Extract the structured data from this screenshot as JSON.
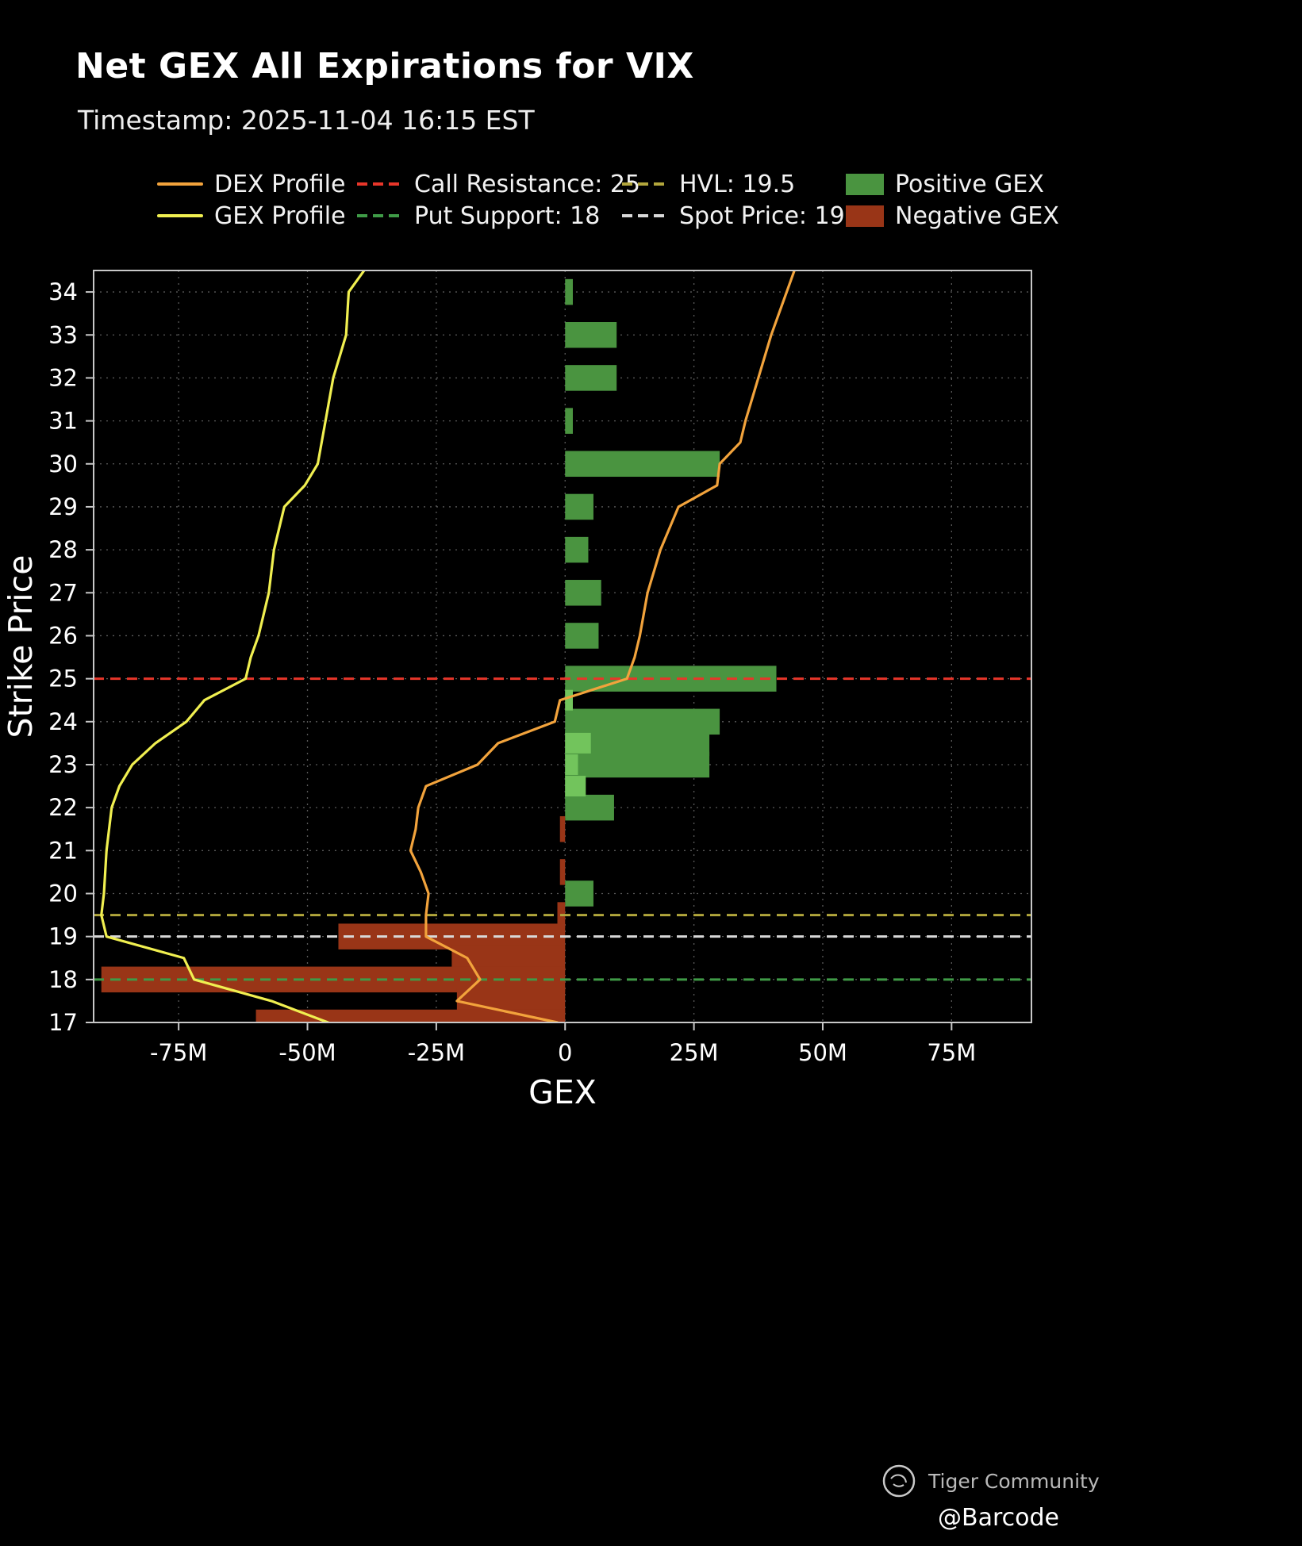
{
  "header": {
    "title": "Net GEX All Expirations for VIX",
    "subtitle": "Timestamp: 2025-11-04 16:15 EST"
  },
  "legend": {
    "items": [
      {
        "label": "DEX Profile",
        "swatch": "line",
        "color": "#f2a33c"
      },
      {
        "label": "Call Resistance: 25",
        "swatch": "dashed",
        "color": "#e8362a"
      },
      {
        "label": "HVL: 19.5",
        "swatch": "dashed",
        "color": "#b2a63c"
      },
      {
        "label": "Positive GEX",
        "swatch": "patch",
        "color": "#4a9440"
      },
      {
        "label": "GEX Profile",
        "swatch": "line",
        "color": "#f0ef50"
      },
      {
        "label": "Put Support: 18",
        "swatch": "dashed",
        "color": "#3f9b47"
      },
      {
        "label": "Spot Price: 19",
        "swatch": "dashed",
        "color": "#d8d8d8"
      },
      {
        "label": "Negative GEX",
        "swatch": "patch",
        "color": "#993517"
      }
    ]
  },
  "chart_data": {
    "type": "bar",
    "orientation": "horizontal",
    "title": "Net GEX All Expirations for VIX",
    "xlabel": "GEX",
    "ylabel": "Strike Price",
    "unit": "millions",
    "xlim": [
      -91.5,
      90.5
    ],
    "ylim": [
      17,
      34.5
    ],
    "x_ticks": [
      -75,
      -50,
      -25,
      0,
      25,
      50,
      75
    ],
    "x_tick_labels": [
      "-75M",
      "-50M",
      "-25M",
      "0",
      "25M",
      "50M",
      "75M"
    ],
    "y_ticks": [
      17,
      18,
      19,
      20,
      21,
      22,
      23,
      24,
      25,
      26,
      27,
      28,
      29,
      30,
      31,
      32,
      33,
      34
    ],
    "grid": true,
    "legend_position": "top",
    "colors": {
      "positive_gex": "#4a9440",
      "positive_gex_light": "#72c45c",
      "negative_gex": "#993517",
      "dex_profile": "#f2a33c",
      "gex_profile": "#f0ef50",
      "call_resistance": "#e8362a",
      "put_support": "#3f9b47",
      "hvl": "#b2a63c",
      "spot_price": "#d8d8d8",
      "grid": "#5a5a5a",
      "axis": "#c8c8c8"
    },
    "net_gex_bars": [
      [
        34,
        1.5
      ],
      [
        33,
        10
      ],
      [
        32,
        10
      ],
      [
        31,
        1.5
      ],
      [
        30,
        30
      ],
      [
        29,
        5.5
      ],
      [
        28,
        4.5
      ],
      [
        27,
        7
      ],
      [
        26,
        6.5
      ],
      [
        25,
        41
      ],
      [
        24.5,
        1.5
      ],
      [
        24,
        30
      ],
      [
        23.5,
        28
      ],
      [
        23,
        28
      ],
      [
        22.5,
        4
      ],
      [
        22,
        9.5
      ],
      [
        21.5,
        -1
      ],
      [
        20.5,
        -1
      ],
      [
        20,
        5.5
      ],
      [
        19.5,
        -1.5
      ],
      [
        19,
        -44
      ],
      [
        18.5,
        -22
      ],
      [
        18,
        -90
      ],
      [
        17.5,
        -21
      ],
      [
        17,
        -60
      ]
    ],
    "overlay_bars": [
      [
        24.5,
        1.5
      ],
      [
        23.5,
        5
      ],
      [
        23,
        2.5
      ],
      [
        22.5,
        4
      ]
    ],
    "levels": [
      {
        "label": "Call Resistance",
        "strike": 25,
        "color_key": "call_resistance"
      },
      {
        "label": "HVL",
        "strike": 19.5,
        "color_key": "hvl"
      },
      {
        "label": "Spot Price",
        "strike": 19,
        "color_key": "spot_price"
      },
      {
        "label": "Put Support",
        "strike": 18,
        "color_key": "put_support"
      }
    ],
    "series": [
      {
        "name": "DEX Profile",
        "color_key": "dex_profile",
        "points": [
          [
            17,
            -1.5
          ],
          [
            17.5,
            -21
          ],
          [
            18,
            -16.5
          ],
          [
            18.5,
            -19
          ],
          [
            19,
            -27
          ],
          [
            19.5,
            -27
          ],
          [
            20,
            -26.5
          ],
          [
            20.5,
            -28
          ],
          [
            21,
            -30
          ],
          [
            21.5,
            -29
          ],
          [
            22,
            -28.5
          ],
          [
            22.5,
            -27
          ],
          [
            23,
            -17
          ],
          [
            23.5,
            -13
          ],
          [
            24,
            -2
          ],
          [
            24.5,
            -1
          ],
          [
            25,
            12
          ],
          [
            25.5,
            13.5
          ],
          [
            26,
            14.5
          ],
          [
            27,
            16
          ],
          [
            28,
            18.5
          ],
          [
            29,
            22
          ],
          [
            29.5,
            29.5
          ],
          [
            30,
            30
          ],
          [
            30.5,
            34
          ],
          [
            31,
            35
          ],
          [
            32,
            37.5
          ],
          [
            33,
            40
          ],
          [
            34,
            43
          ],
          [
            34.5,
            44.5
          ]
        ]
      },
      {
        "name": "GEX Profile",
        "color_key": "gex_profile",
        "points": [
          [
            17,
            -46
          ],
          [
            17.5,
            -57
          ],
          [
            18,
            -72
          ],
          [
            18.5,
            -74
          ],
          [
            19,
            -89
          ],
          [
            19.5,
            -90
          ],
          [
            20,
            -89.5
          ],
          [
            21,
            -89
          ],
          [
            22,
            -88
          ],
          [
            22.5,
            -86.5
          ],
          [
            23,
            -84
          ],
          [
            23.5,
            -79.5
          ],
          [
            24,
            -73.5
          ],
          [
            24.5,
            -70
          ],
          [
            25,
            -62
          ],
          [
            25.5,
            -61
          ],
          [
            26,
            -59.5
          ],
          [
            27,
            -57.5
          ],
          [
            28,
            -56.5
          ],
          [
            29,
            -54.5
          ],
          [
            29.5,
            -50.5
          ],
          [
            30,
            -48
          ],
          [
            31,
            -46.5
          ],
          [
            32,
            -45
          ],
          [
            33,
            -42.5
          ],
          [
            34,
            -42
          ],
          [
            34.5,
            -39
          ]
        ]
      }
    ]
  },
  "footer": {
    "community": "Tiger Community",
    "handle": "@Barcode"
  }
}
